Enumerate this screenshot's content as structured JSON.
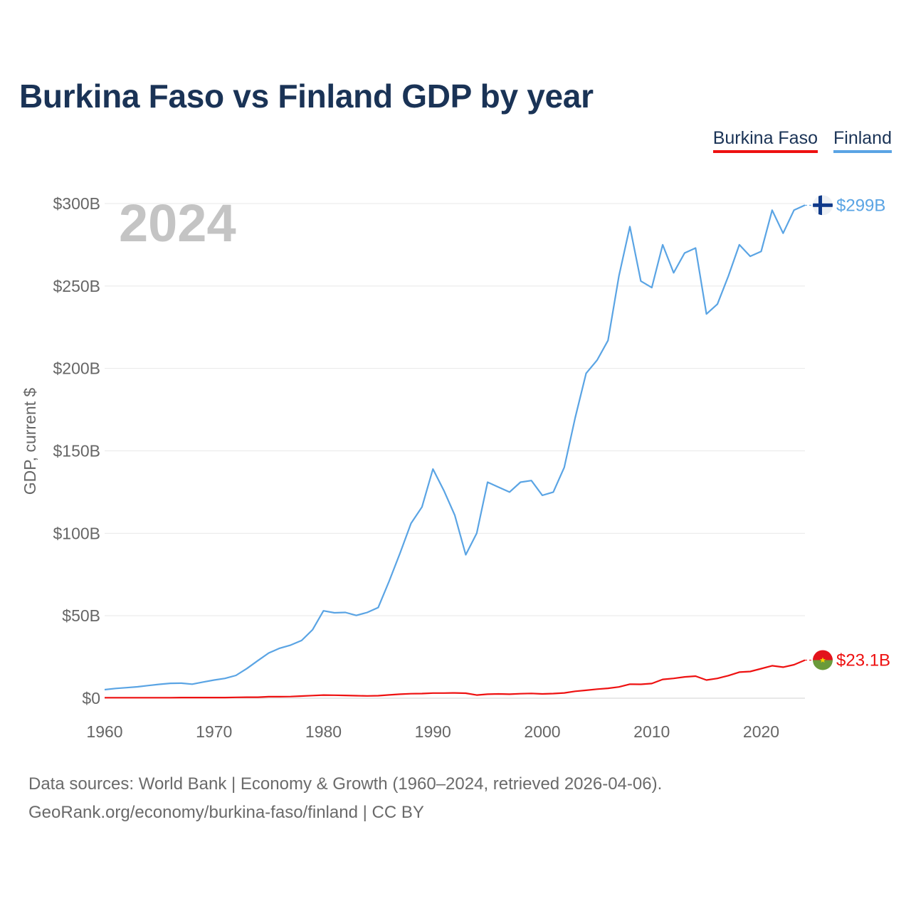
{
  "title": "Burkina Faso vs Finland GDP by year",
  "legend": [
    {
      "label": "Burkina Faso",
      "color": "#ee1111"
    },
    {
      "label": "Finland",
      "color": "#5aa4e4"
    }
  ],
  "footer": {
    "line1": "Data sources: World Bank | Economy & Growth (1960–2024, retrieved 2026-04-06).",
    "line2": "GeoRank.org/economy/burkina-faso/finland | CC BY"
  },
  "chart_data": {
    "type": "line",
    "title": "Burkina Faso vs Finland GDP by year",
    "xlabel": "",
    "ylabel": "GDP, current $",
    "current_year": "2024",
    "xlim": [
      1960,
      2024
    ],
    "ylim": [
      0,
      300
    ],
    "x_ticks": [
      1960,
      1970,
      1980,
      1990,
      2000,
      2010,
      2020
    ],
    "x_tick_labels": [
      "1960",
      "1970",
      "1980",
      "1990",
      "2000",
      "2010",
      "2020"
    ],
    "y_ticks": [
      0,
      50,
      100,
      150,
      200,
      250,
      300
    ],
    "y_tick_labels": [
      "$0",
      "$50B",
      "$100B",
      "$150B",
      "$200B",
      "$250B",
      "$300B"
    ],
    "grid": true,
    "legend_position": "top-right",
    "x": [
      1960,
      1961,
      1962,
      1963,
      1964,
      1965,
      1966,
      1967,
      1968,
      1969,
      1970,
      1971,
      1972,
      1973,
      1974,
      1975,
      1976,
      1977,
      1978,
      1979,
      1980,
      1981,
      1982,
      1983,
      1984,
      1985,
      1986,
      1987,
      1988,
      1989,
      1990,
      1991,
      1992,
      1993,
      1994,
      1995,
      1996,
      1997,
      1998,
      1999,
      2000,
      2001,
      2002,
      2003,
      2004,
      2005,
      2006,
      2007,
      2008,
      2009,
      2010,
      2011,
      2012,
      2013,
      2014,
      2015,
      2016,
      2017,
      2018,
      2019,
      2020,
      2021,
      2022,
      2023,
      2024
    ],
    "series": [
      {
        "name": "Finland",
        "color": "#5aa4e4",
        "end_label": "$299B",
        "flag": "finland",
        "values": [
          5.2,
          5.9,
          6.4,
          6.9,
          7.7,
          8.4,
          9.0,
          9.1,
          8.5,
          9.8,
          11.0,
          12.0,
          13.8,
          18.0,
          22.8,
          27.4,
          30.3,
          32.2,
          35.0,
          41.5,
          53.0,
          51.8,
          52.0,
          50.2,
          52.0,
          55.0,
          71.0,
          88.0,
          106.0,
          116.0,
          139.0,
          126.0,
          111.0,
          87.0,
          100.0,
          131.0,
          128.0,
          125.0,
          131.0,
          132.0,
          123.0,
          125.0,
          140.0,
          170.0,
          197.0,
          205.0,
          217.0,
          256.0,
          286.0,
          253.0,
          249.0,
          275.0,
          258.0,
          270.0,
          273.0,
          233.0,
          239.0,
          256.0,
          275.0,
          268.0,
          271.0,
          296.0,
          282.0,
          296.0,
          299.0
        ]
      },
      {
        "name": "Burkina Faso",
        "color": "#ee1111",
        "end_label": "$23.1B",
        "flag": "burkina-faso",
        "values": [
          0.3,
          0.3,
          0.3,
          0.3,
          0.3,
          0.3,
          0.3,
          0.4,
          0.4,
          0.4,
          0.4,
          0.4,
          0.5,
          0.6,
          0.6,
          0.9,
          0.9,
          1.0,
          1.3,
          1.6,
          1.9,
          1.8,
          1.7,
          1.5,
          1.4,
          1.5,
          2.0,
          2.4,
          2.7,
          2.8,
          3.1,
          3.1,
          3.2,
          3.0,
          1.9,
          2.4,
          2.6,
          2.4,
          2.7,
          2.9,
          2.6,
          2.8,
          3.2,
          4.2,
          4.8,
          5.5,
          6.0,
          6.8,
          8.5,
          8.4,
          8.9,
          11.4,
          12.0,
          12.9,
          13.4,
          11.0,
          12.0,
          13.7,
          15.8,
          16.2,
          17.9,
          19.7,
          18.8,
          20.3,
          23.1
        ]
      }
    ]
  }
}
